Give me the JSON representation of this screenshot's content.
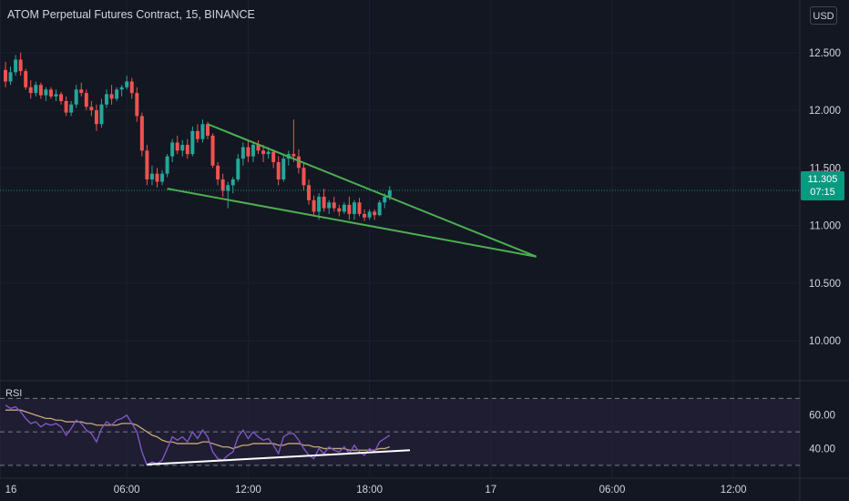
{
  "header": {
    "title": "ATOM Perpetual Futures Contract, 15, BINANCE",
    "currency": "USD"
  },
  "price_badge": {
    "price": "11.305",
    "countdown": "07:15"
  },
  "colors": {
    "background": "#131722",
    "up": "#26a69a",
    "down": "#ef5350",
    "trendline": "#4caf50",
    "rsi_line": "#7e57c2",
    "rsi_ma": "#c8a87a",
    "rsi_band": "#2a2240",
    "rsi_divergence": "#ffffff",
    "price_line": "#089981"
  },
  "chart_data": [
    {
      "type": "candlestick",
      "title": "ATOM Perpetual Futures Contract, 15, BINANCE",
      "y_axis": {
        "ticks": [
          "12.500",
          "12.000",
          "11.500",
          "11.000",
          "10.500",
          "10.000"
        ],
        "ylim": [
          9.7,
          12.72
        ]
      },
      "x_axis": {
        "ticks": [
          "16",
          "06:00",
          "12:00",
          "18:00",
          "17",
          "06:00",
          "12:00"
        ]
      },
      "current_price": 11.305,
      "ohlc": [
        [
          12.35,
          12.42,
          12.2,
          12.25
        ],
        [
          12.25,
          12.38,
          12.22,
          12.33
        ],
        [
          12.33,
          12.48,
          12.3,
          12.44
        ],
        [
          12.44,
          12.5,
          12.3,
          12.34
        ],
        [
          12.34,
          12.36,
          12.18,
          12.2
        ],
        [
          12.2,
          12.26,
          12.1,
          12.15
        ],
        [
          12.15,
          12.25,
          12.12,
          12.22
        ],
        [
          12.22,
          12.24,
          12.1,
          12.13
        ],
        [
          12.13,
          12.2,
          12.08,
          12.18
        ],
        [
          12.18,
          12.2,
          12.1,
          12.12
        ],
        [
          12.12,
          12.18,
          12.08,
          12.14
        ],
        [
          12.14,
          12.16,
          12.05,
          12.08
        ],
        [
          12.08,
          12.12,
          11.95,
          11.98
        ],
        [
          11.98,
          12.08,
          11.95,
          12.05
        ],
        [
          12.05,
          12.22,
          12.02,
          12.18
        ],
        [
          12.18,
          12.24,
          12.12,
          12.15
        ],
        [
          12.15,
          12.18,
          12.0,
          12.03
        ],
        [
          12.03,
          12.08,
          11.95,
          12.0
        ],
        [
          12.0,
          12.05,
          11.82,
          11.88
        ],
        [
          11.88,
          12.1,
          11.85,
          12.05
        ],
        [
          12.05,
          12.18,
          12.02,
          12.14
        ],
        [
          12.14,
          12.22,
          12.05,
          12.1
        ],
        [
          12.1,
          12.2,
          12.08,
          12.18
        ],
        [
          12.18,
          12.22,
          12.12,
          12.2
        ],
        [
          12.2,
          12.3,
          12.18,
          12.25
        ],
        [
          12.25,
          12.28,
          12.1,
          12.15
        ],
        [
          12.15,
          12.2,
          11.9,
          11.95
        ],
        [
          11.95,
          11.98,
          11.6,
          11.65
        ],
        [
          11.65,
          11.7,
          11.35,
          11.4
        ],
        [
          11.4,
          11.52,
          11.35,
          11.45
        ],
        [
          11.45,
          11.5,
          11.33,
          11.38
        ],
        [
          11.38,
          11.48,
          11.35,
          11.45
        ],
        [
          11.45,
          11.62,
          11.42,
          11.6
        ],
        [
          11.6,
          11.75,
          11.55,
          11.72
        ],
        [
          11.72,
          11.78,
          11.62,
          11.65
        ],
        [
          11.65,
          11.74,
          11.6,
          11.7
        ],
        [
          11.7,
          11.75,
          11.58,
          11.62
        ],
        [
          11.62,
          11.86,
          11.6,
          11.82
        ],
        [
          11.82,
          11.88,
          11.72,
          11.75
        ],
        [
          11.75,
          11.92,
          11.72,
          11.88
        ],
        [
          11.88,
          11.9,
          11.75,
          11.78
        ],
        [
          11.78,
          11.8,
          11.5,
          11.52
        ],
        [
          11.52,
          11.55,
          11.35,
          11.4
        ],
        [
          11.4,
          11.45,
          11.25,
          11.3
        ],
        [
          11.3,
          11.38,
          11.15,
          11.35
        ],
        [
          11.35,
          11.42,
          11.28,
          11.4
        ],
        [
          11.4,
          11.62,
          11.38,
          11.58
        ],
        [
          11.58,
          11.72,
          11.52,
          11.68
        ],
        [
          11.68,
          11.74,
          11.55,
          11.6
        ],
        [
          11.6,
          11.72,
          11.55,
          11.7
        ],
        [
          11.7,
          11.74,
          11.62,
          11.65
        ],
        [
          11.65,
          11.7,
          11.55,
          11.62
        ],
        [
          11.62,
          11.68,
          11.58,
          11.64
        ],
        [
          11.64,
          11.66,
          11.5,
          11.55
        ],
        [
          11.55,
          11.6,
          11.35,
          11.4
        ],
        [
          11.4,
          11.62,
          11.38,
          11.58
        ],
        [
          11.58,
          11.65,
          11.52,
          11.62
        ],
        [
          11.62,
          11.92,
          11.55,
          11.6
        ],
        [
          11.6,
          11.66,
          11.45,
          11.5
        ],
        [
          11.5,
          11.55,
          11.3,
          11.35
        ],
        [
          11.35,
          11.4,
          11.18,
          11.22
        ],
        [
          11.22,
          11.26,
          11.08,
          11.12
        ],
        [
          11.12,
          11.28,
          11.05,
          11.25
        ],
        [
          11.25,
          11.32,
          11.12,
          11.15
        ],
        [
          11.15,
          11.22,
          11.1,
          11.2
        ],
        [
          11.2,
          11.25,
          11.12,
          11.15
        ],
        [
          11.15,
          11.18,
          11.08,
          11.12
        ],
        [
          11.12,
          11.2,
          11.1,
          11.18
        ],
        [
          11.18,
          11.25,
          11.05,
          11.1
        ],
        [
          11.1,
          11.22,
          11.05,
          11.2
        ],
        [
          11.2,
          11.24,
          11.08,
          11.1
        ],
        [
          11.1,
          11.14,
          11.04,
          11.07
        ],
        [
          11.07,
          11.14,
          11.05,
          11.12
        ],
        [
          11.12,
          11.14,
          11.05,
          11.09
        ],
        [
          11.09,
          11.22,
          11.08,
          11.2
        ],
        [
          11.2,
          11.28,
          11.15,
          11.25
        ],
        [
          11.25,
          11.34,
          11.22,
          11.305
        ]
      ],
      "trendlines": [
        {
          "name": "upper",
          "from": [
            40,
            11.88
          ],
          "to": [
            105,
            10.73
          ]
        },
        {
          "name": "lower",
          "from": [
            32,
            11.32
          ],
          "to": [
            105,
            10.73
          ]
        }
      ]
    },
    {
      "type": "line",
      "title": "RSI",
      "y_axis": {
        "ticks": [
          "60.00",
          "40.00"
        ],
        "ylim": [
          25,
          74
        ],
        "band": [
          30,
          70
        ],
        "midline": 50
      },
      "series": [
        {
          "values": [
            66,
            64,
            65,
            62,
            58,
            55,
            56,
            53,
            55,
            54,
            55,
            53,
            48,
            52,
            57,
            55,
            51,
            49,
            44,
            52,
            56,
            54,
            57,
            58,
            60,
            55,
            50,
            38,
            30,
            32,
            31,
            33,
            40,
            47,
            45,
            47,
            44,
            50,
            46,
            51,
            47,
            38,
            34,
            33,
            36,
            38,
            47,
            51,
            46,
            50,
            47,
            45,
            46,
            42,
            37,
            47,
            49,
            49,
            45,
            40,
            36,
            34,
            40,
            37,
            41,
            39,
            38,
            41,
            37,
            42,
            38,
            36,
            40,
            38,
            44,
            46,
            48
          ]
        },
        {
          "values": [
            63,
            63,
            63,
            63,
            62,
            61,
            60,
            59,
            58,
            58,
            57,
            57,
            56,
            56,
            56,
            56,
            55,
            55,
            54,
            54,
            54,
            54,
            54,
            55,
            55,
            55,
            54,
            52,
            50,
            48,
            47,
            45,
            44,
            44,
            43,
            43,
            43,
            43,
            43,
            44,
            44,
            43,
            42,
            41,
            41,
            40,
            41,
            42,
            42,
            43,
            43,
            43,
            43,
            43,
            42,
            42,
            43,
            43,
            43,
            42,
            42,
            41,
            41,
            40,
            40,
            40,
            40,
            40,
            39,
            39,
            39,
            39,
            39,
            39,
            40,
            40,
            41
          ]
        }
      ],
      "divergence_line": {
        "from": [
          28,
          30.5
        ],
        "to": [
          80,
          39
        ]
      }
    }
  ]
}
